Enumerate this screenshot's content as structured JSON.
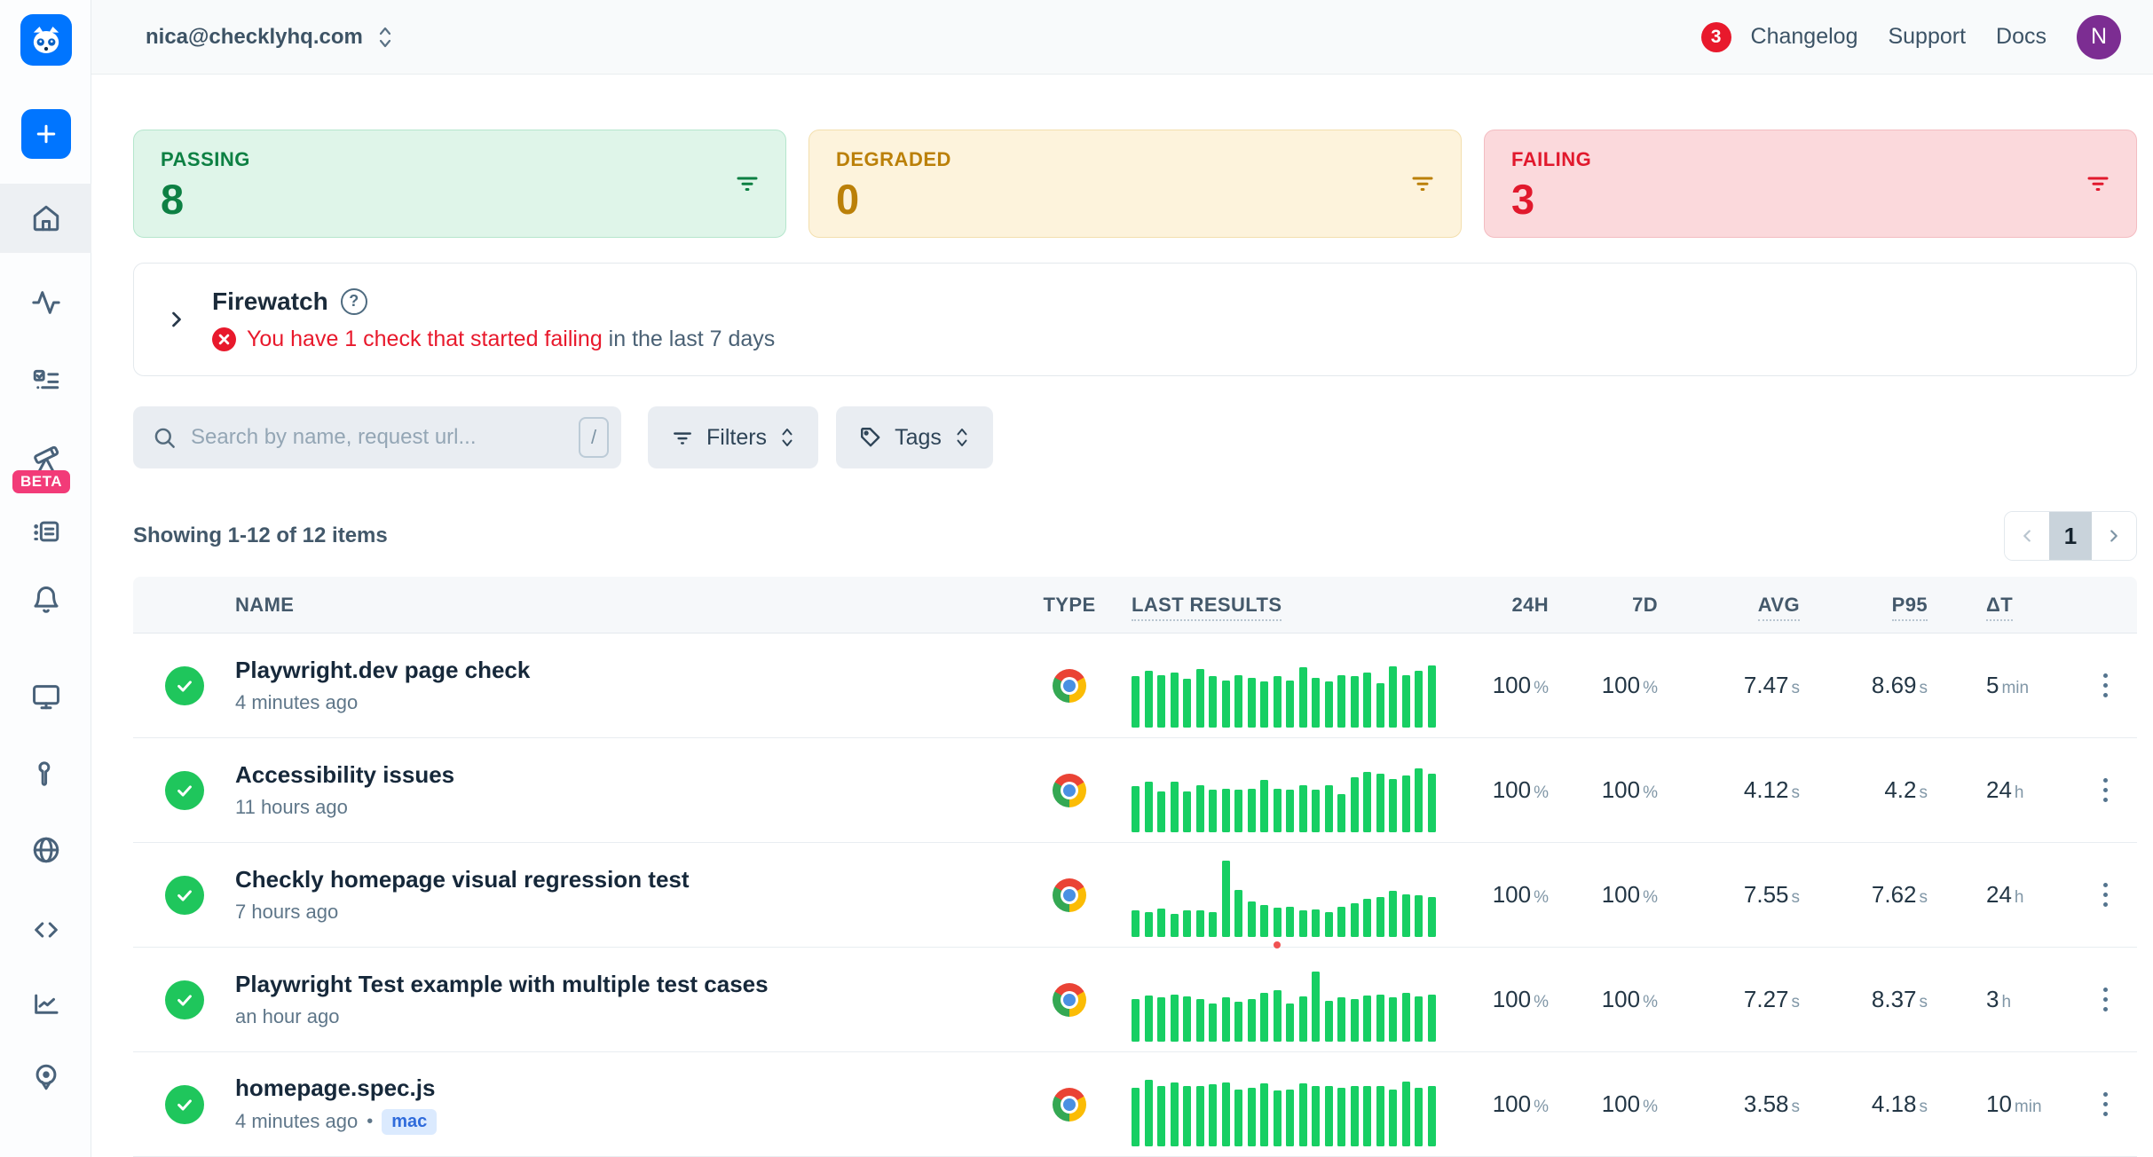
{
  "header": {
    "account_email": "nica@checklyhq.com",
    "notification_count": "3",
    "nav": {
      "changelog": "Changelog",
      "support": "Support",
      "docs": "Docs"
    },
    "avatar_initial": "N"
  },
  "sidebar": {
    "items": [
      "home",
      "activity",
      "checks",
      "telescope",
      "logs",
      "alerts",
      "monitors",
      "maintenance",
      "globe",
      "code",
      "analytics",
      "locations"
    ],
    "beta_label": "BETA",
    "active_item": "home"
  },
  "status_cards": [
    {
      "label": "PASSING",
      "value": "8",
      "bg": "#dff5e9",
      "border": "#b5e6cd",
      "color": "#0d8043"
    },
    {
      "label": "DEGRADED",
      "value": "0",
      "bg": "#fdf3dc",
      "border": "#f3dfae",
      "color": "#bb8009"
    },
    {
      "label": "FAILING",
      "value": "3",
      "bg": "#fbd9dc",
      "border": "#f3bcc1",
      "color": "#e1192d"
    }
  ],
  "firewatch": {
    "title": "Firewatch",
    "alert_highlight": "You have 1 check that started failing",
    "alert_rest": " in the last 7 days"
  },
  "toolbar": {
    "search_placeholder": "Search by name, request url...",
    "search_shortcut": "/",
    "filters_label": "Filters",
    "tags_label": "Tags"
  },
  "list_meta": {
    "summary": "Showing 1-12 of 12 items",
    "page": "1"
  },
  "table": {
    "columns": [
      "NAME",
      "TYPE",
      "LAST RESULTS",
      "24H",
      "7D",
      "AVG",
      "P95",
      "ΔT"
    ],
    "rows": [
      {
        "name": "Playwright.dev page check",
        "time": "4 minutes ago",
        "badge": "",
        "h24": "100",
        "h24_unit": "%",
        "d7": "100",
        "d7_unit": "%",
        "avg": "7.47",
        "avg_unit": "s",
        "p95": "8.69",
        "p95_unit": "s",
        "dt": "5",
        "dt_unit": "min",
        "red_dot_index": -1,
        "bars": [
          58,
          64,
          59,
          62,
          55,
          66,
          58,
          53,
          59,
          56,
          52,
          58,
          53,
          68,
          56,
          52,
          59,
          58,
          62,
          50,
          69,
          59,
          64,
          70
        ]
      },
      {
        "name": "Accessibility issues",
        "time": "11 hours ago",
        "badge": "",
        "h24": "100",
        "h24_unit": "%",
        "d7": "100",
        "d7_unit": "%",
        "avg": "4.12",
        "avg_unit": "s",
        "p95": "4.2",
        "p95_unit": "s",
        "dt": "24",
        "dt_unit": "h",
        "red_dot_index": -1,
        "bars": [
          52,
          57,
          46,
          57,
          46,
          53,
          48,
          49,
          48,
          49,
          59,
          49,
          48,
          53,
          48,
          53,
          43,
          62,
          68,
          66,
          60,
          64,
          72,
          66
        ]
      },
      {
        "name": "Checkly homepage visual regression test",
        "time": "7 hours ago",
        "badge": "",
        "h24": "100",
        "h24_unit": "%",
        "d7": "100",
        "d7_unit": "%",
        "avg": "7.55",
        "avg_unit": "s",
        "p95": "7.62",
        "p95_unit": "s",
        "dt": "24",
        "dt_unit": "h",
        "red_dot_index": 11,
        "bars": [
          30,
          28,
          32,
          26,
          30,
          30,
          28,
          86,
          53,
          40,
          36,
          33,
          34,
          30,
          31,
          28,
          34,
          38,
          43,
          45,
          52,
          48,
          47,
          45
        ]
      },
      {
        "name": "Playwright Test example with multiple test cases",
        "time": "an hour ago",
        "badge": "",
        "h24": "100",
        "h24_unit": "%",
        "d7": "100",
        "d7_unit": "%",
        "avg": "7.27",
        "avg_unit": "s",
        "p95": "8.37",
        "p95_unit": "s",
        "dt": "3",
        "dt_unit": "h",
        "red_dot_index": -1,
        "bars": [
          48,
          52,
          50,
          53,
          51,
          48,
          43,
          50,
          45,
          48,
          55,
          58,
          43,
          51,
          79,
          46,
          50,
          48,
          52,
          53,
          50,
          55,
          51,
          53
        ]
      },
      {
        "name": "homepage.spec.js",
        "time": "4 minutes ago",
        "badge": "mac",
        "h24": "100",
        "h24_unit": "%",
        "d7": "100",
        "d7_unit": "%",
        "avg": "3.58",
        "avg_unit": "s",
        "p95": "4.18",
        "p95_unit": "s",
        "dt": "10",
        "dt_unit": "min",
        "red_dot_index": -1,
        "bars": [
          66,
          75,
          68,
          72,
          68,
          68,
          70,
          72,
          64,
          66,
          71,
          63,
          64,
          71,
          68,
          68,
          66,
          68,
          68,
          68,
          64,
          73,
          66,
          68
        ]
      }
    ]
  },
  "colors": {
    "accent_blue": "#0075ff",
    "bar_green": "#17cf63",
    "status_green": "#1fc65c",
    "error_red": "#e8192c",
    "beta_pink": "#f23b78",
    "avatar_purple": "#7c2d92"
  }
}
